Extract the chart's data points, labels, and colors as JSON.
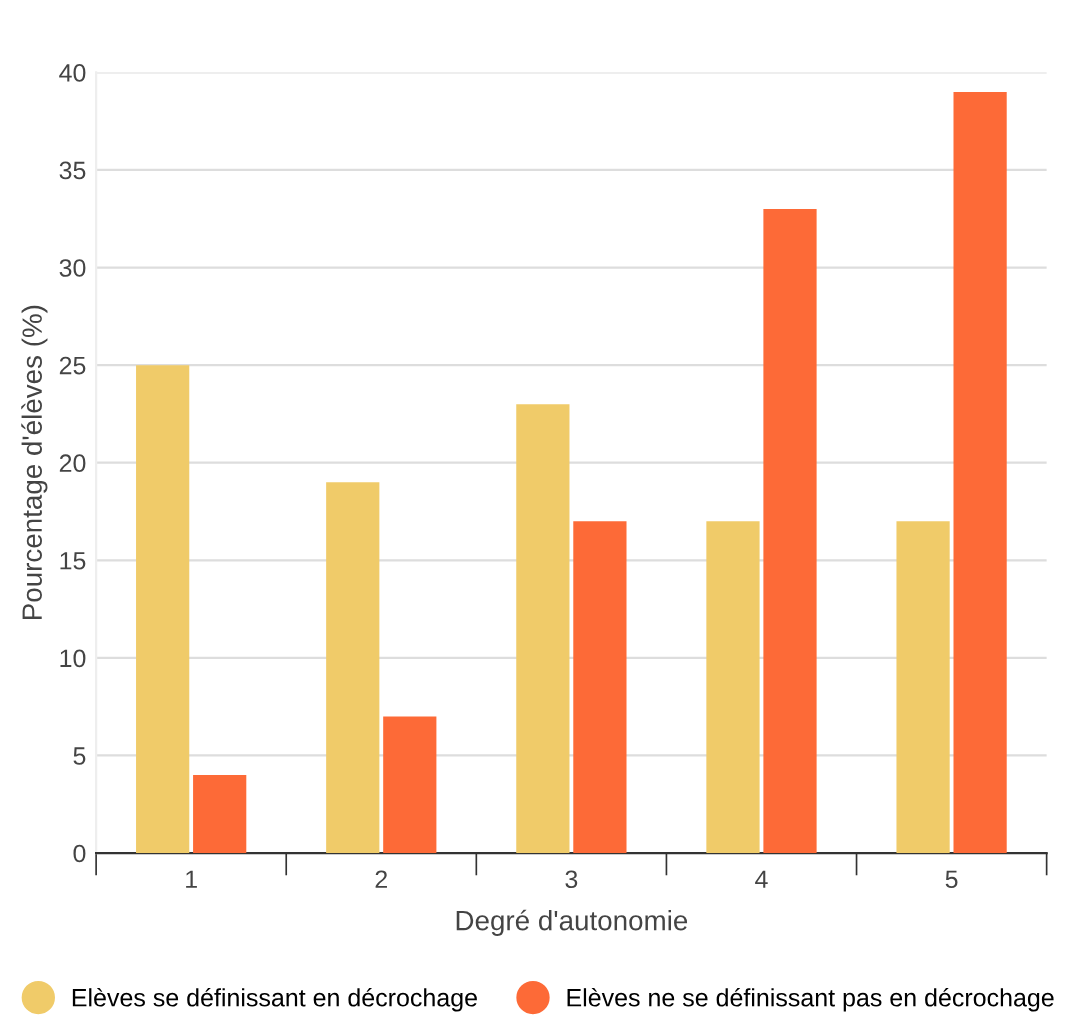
{
  "chart_data": {
    "type": "bar",
    "xlabel": "Degré d'autonomie",
    "ylabel": "Pourcentage d'élèves (%)",
    "categories": [
      "1",
      "2",
      "3",
      "4",
      "5"
    ],
    "series": [
      {
        "name": "Elèves se définissant en décrochage",
        "color": "#f0cb69",
        "values": [
          25,
          19,
          23,
          17,
          17
        ]
      },
      {
        "name": "Elèves ne se définissant pas en décrochage",
        "color": "#fd6a37",
        "values": [
          4,
          7,
          17,
          33,
          39
        ]
      }
    ],
    "ylim": [
      0,
      40
    ],
    "yticks": [
      0,
      5,
      10,
      15,
      20,
      25,
      30,
      35,
      40
    ],
    "grid": "y",
    "legend": "bottom"
  }
}
